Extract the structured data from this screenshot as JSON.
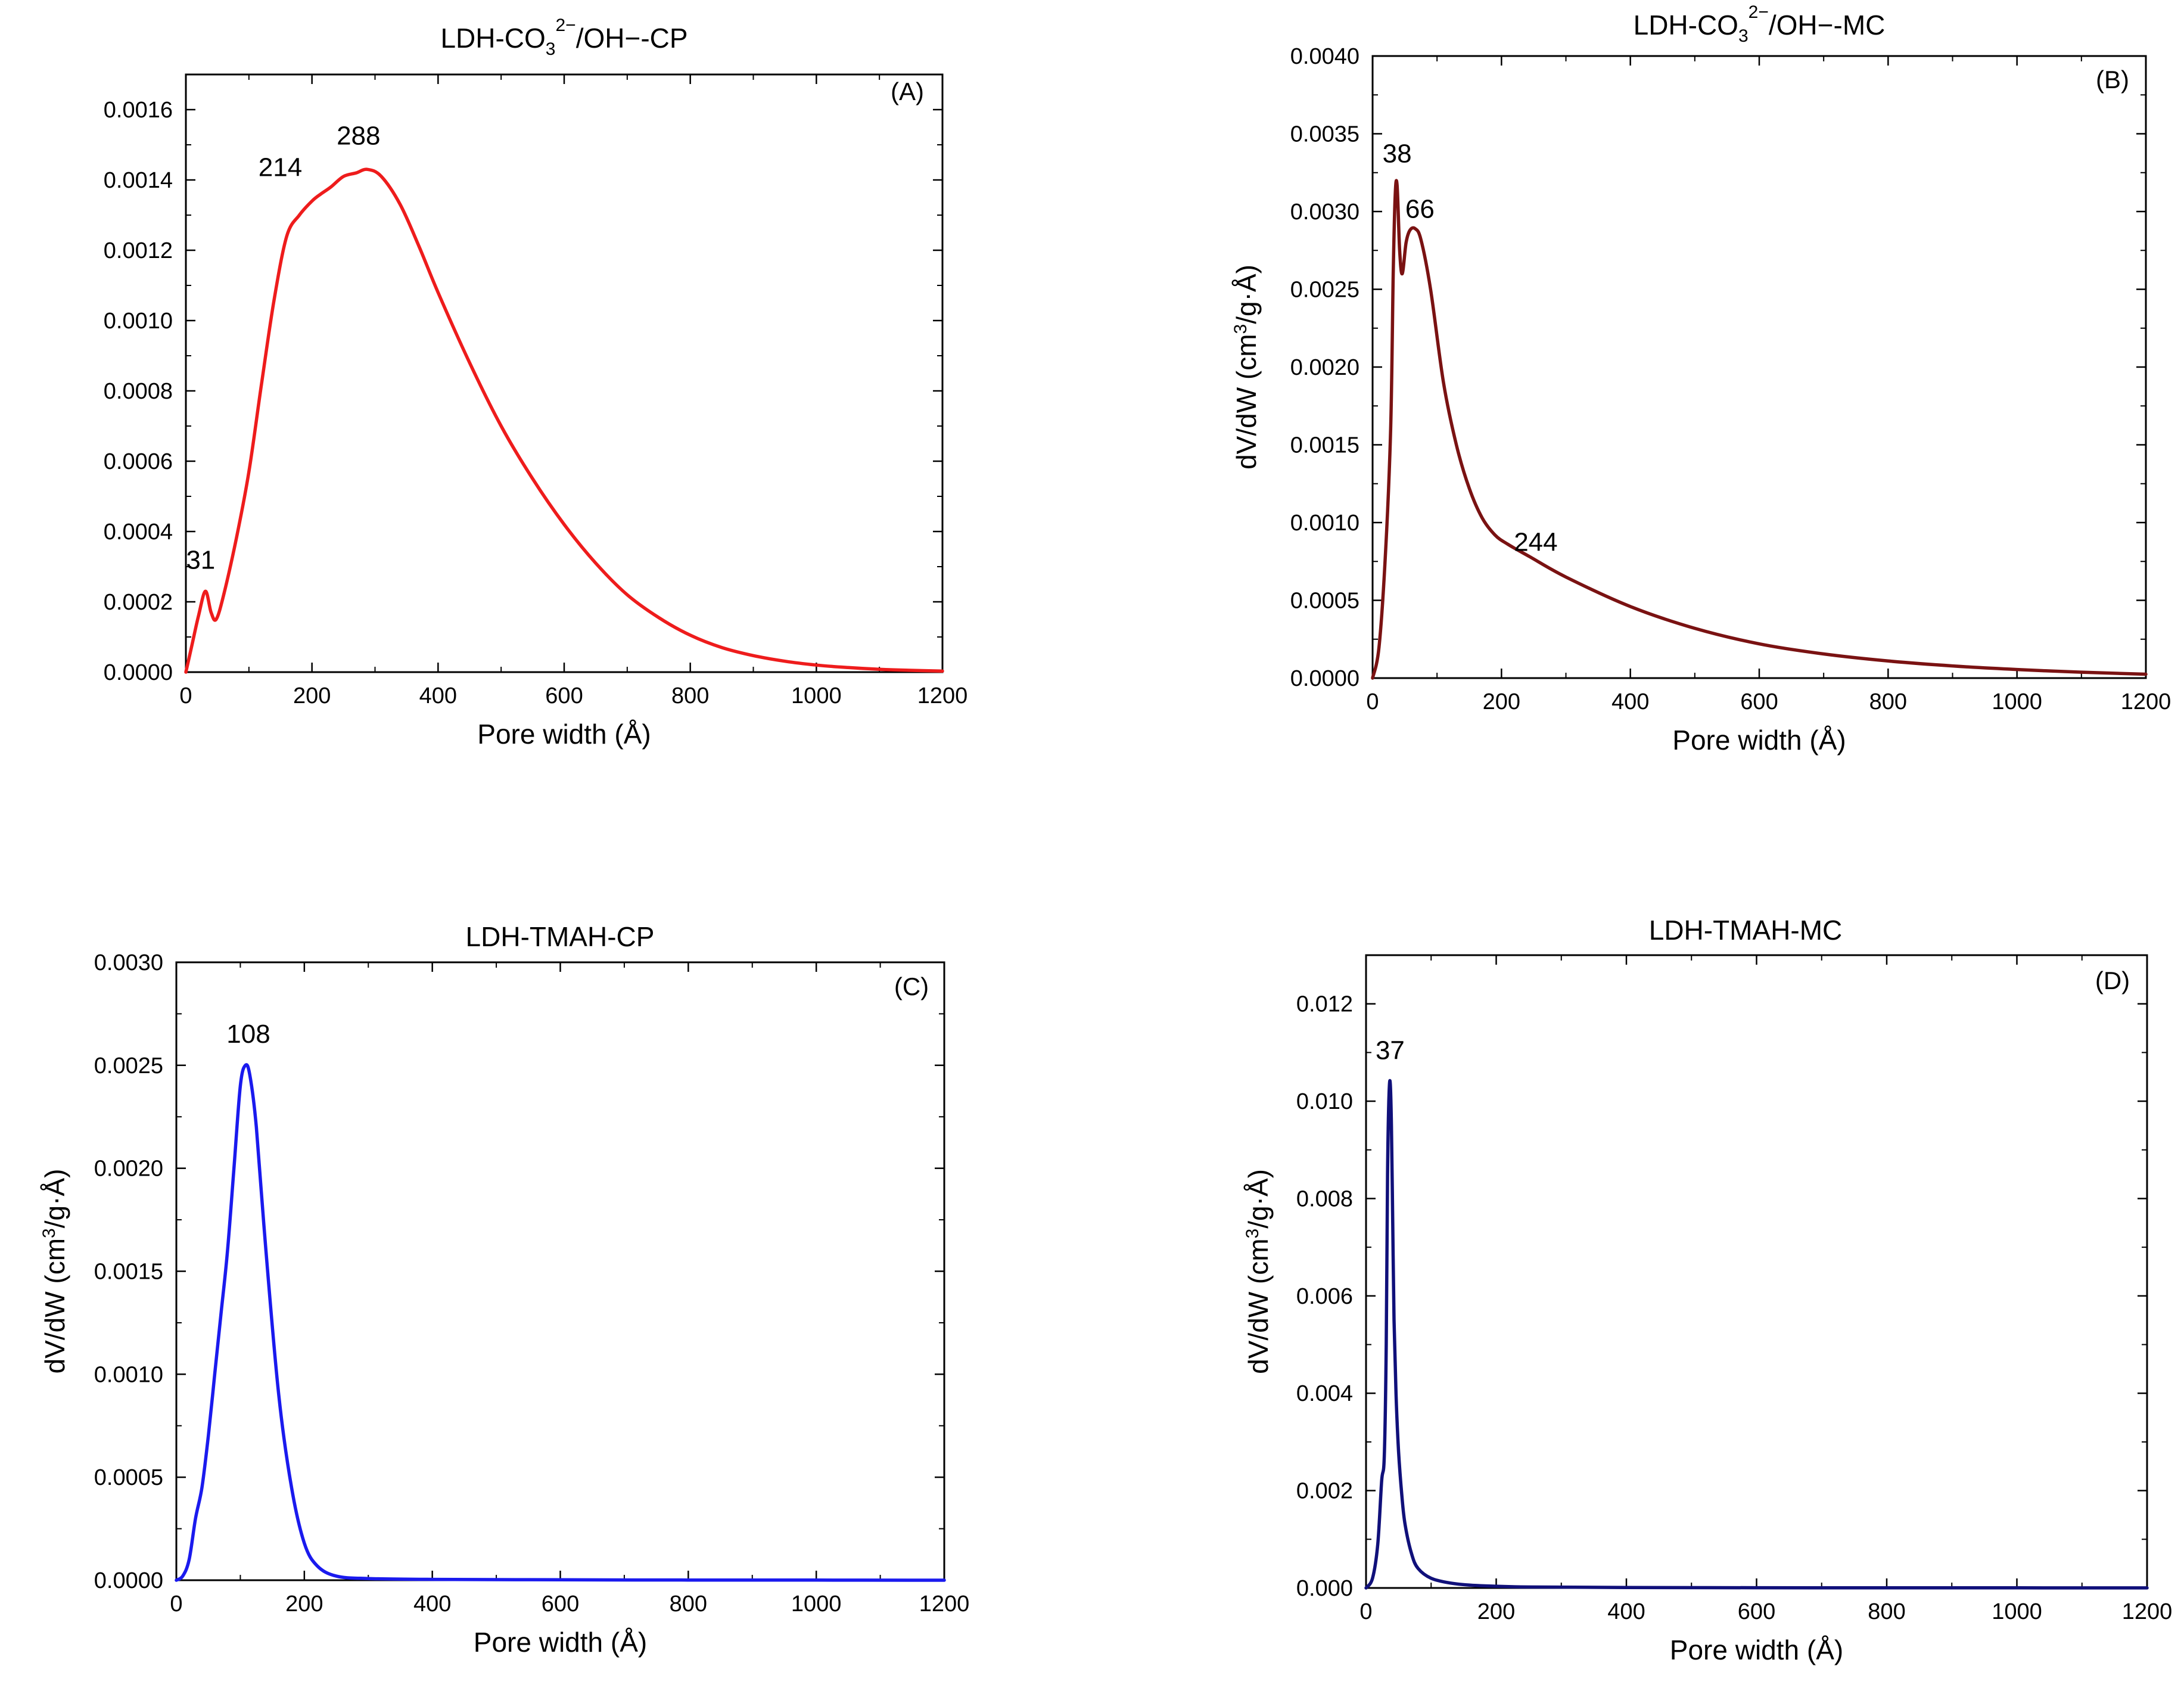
{
  "chart_data": [
    {
      "panel": "A",
      "panel_tag": "(A)",
      "type": "line",
      "title": "LDH-CO32−/OH−-CP",
      "title_parts": {
        "main": "LDH-CO",
        "sub": "3",
        "sup": "2−",
        "rest": "/OH−-CP"
      },
      "xlabel": "Pore width (Å)",
      "ylabel": "",
      "xlim": [
        0,
        1200
      ],
      "ylim": [
        0,
        0.0017
      ],
      "xticks": [
        0,
        200,
        400,
        600,
        800,
        1000,
        1200
      ],
      "yticks": [
        "0.0000",
        "0.0002",
        "0.0004",
        "0.0006",
        "0.0008",
        "0.0010",
        "0.0012",
        "0.0014",
        "0.0016"
      ],
      "color": "#ee1c1c",
      "series": [
        {
          "name": "LDH-CO32−/OH−-CP",
          "x": [
            0,
            10,
            20,
            31,
            40,
            48,
            60,
            80,
            100,
            120,
            140,
            160,
            180,
            200,
            214,
            230,
            250,
            270,
            288,
            310,
            340,
            370,
            400,
            450,
            500,
            550,
            600,
            650,
            700,
            750,
            800,
            850,
            900,
            950,
            1000,
            1050,
            1100,
            1150,
            1200
          ],
          "y": [
            0,
            8e-05,
            0.00016,
            0.00023,
            0.00017,
            0.00015,
            0.00022,
            0.00038,
            0.00057,
            0.00082,
            0.00106,
            0.00124,
            0.0013,
            0.00134,
            0.00136,
            0.00138,
            0.00141,
            0.00142,
            0.00143,
            0.00141,
            0.00133,
            0.00121,
            0.00108,
            0.00088,
            0.0007,
            0.00055,
            0.00042,
            0.00031,
            0.00022,
            0.000155,
            0.000105,
            7e-05,
            4.7e-05,
            3.1e-05,
            2e-05,
            1.3e-05,
            8e-06,
            5e-06,
            3e-06
          ]
        }
      ],
      "annotations": [
        {
          "text": "31",
          "x": 31,
          "y": 0.00023
        },
        {
          "text": "214",
          "x": 214,
          "y": 0.00136
        },
        {
          "text": "288",
          "x": 288,
          "y": 0.00143
        }
      ]
    },
    {
      "panel": "B",
      "panel_tag": "(B)",
      "type": "line",
      "title": "LDH-CO32−/OH−-MC",
      "title_parts": {
        "main": "LDH-CO",
        "sub": "3",
        "sup": "2−",
        "rest": "/OH−-MC"
      },
      "xlabel": "Pore width (Å)",
      "ylabel": "dV/dW (cm3/g·Å)",
      "ylabel_parts": {
        "pre": "dV/dW (cm",
        "sup": "3",
        "post": "/g·Å)"
      },
      "xlim": [
        0,
        1200
      ],
      "ylim": [
        0,
        0.004
      ],
      "xticks": [
        0,
        200,
        400,
        600,
        800,
        1000,
        1200
      ],
      "yticks": [
        "0.0000",
        "0.0005",
        "0.0010",
        "0.0015",
        "0.0020",
        "0.0025",
        "0.0030",
        "0.0035",
        "0.0040"
      ],
      "color": "#7a1212",
      "series": [
        {
          "name": "LDH-CO32−/OH−-MC",
          "x": [
            0,
            10,
            20,
            28,
            32,
            35,
            38,
            42,
            46,
            52,
            58,
            66,
            75,
            90,
            110,
            130,
            150,
            170,
            190,
            210,
            244,
            300,
            400,
            500,
            600,
            700,
            800,
            900,
            1000,
            1100,
            1200
          ],
          "y": [
            0,
            0.0002,
            0.0008,
            0.0016,
            0.0026,
            0.0031,
            0.00317,
            0.00275,
            0.0026,
            0.0028,
            0.00288,
            0.00289,
            0.00282,
            0.0025,
            0.0019,
            0.0015,
            0.00122,
            0.00103,
            0.00092,
            0.00086,
            0.00078,
            0.00065,
            0.00046,
            0.00032,
            0.00022,
            0.000155,
            0.00011,
            7.8e-05,
            5.5e-05,
            3.8e-05,
            2.5e-05
          ]
        }
      ],
      "annotations": [
        {
          "text": "38",
          "x": 38,
          "y": 0.00317
        },
        {
          "text": "66",
          "x": 66,
          "y": 0.00289
        },
        {
          "text": "244",
          "x": 244,
          "y": 0.00078
        }
      ]
    },
    {
      "panel": "C",
      "panel_tag": "(C)",
      "type": "line",
      "title": "LDH-TMAH-CP",
      "xlabel": "Pore width (Å)",
      "ylabel": "dV/dW (cm3/g·Å)",
      "ylabel_parts": {
        "pre": "dV/dW (cm",
        "sup": "3",
        "post": "/g·Å)"
      },
      "xlim": [
        0,
        1200
      ],
      "ylim": [
        0,
        0.003
      ],
      "xticks": [
        0,
        200,
        400,
        600,
        800,
        1000,
        1200
      ],
      "yticks": [
        "0.0000",
        "0.0005",
        "0.0010",
        "0.0015",
        "0.0020",
        "0.0025",
        "0.0030"
      ],
      "color": "#1a1aee",
      "series": [
        {
          "name": "LDH-TMAH-CP",
          "x": [
            0,
            10,
            20,
            30,
            40,
            50,
            60,
            70,
            80,
            90,
            100,
            108,
            115,
            125,
            140,
            160,
            180,
            200,
            220,
            250,
            300,
            400,
            600,
            800,
            1000,
            1200
          ],
          "y": [
            0,
            2e-05,
            0.0001,
            0.0003,
            0.00045,
            0.0007,
            0.001,
            0.0013,
            0.0016,
            0.002,
            0.0024,
            0.0025,
            0.00245,
            0.0022,
            0.0016,
            0.0009,
            0.00045,
            0.00018,
            7e-05,
            2e-05,
            8e-06,
            4e-06,
            2e-06,
            1e-06,
            5e-07,
            0
          ]
        }
      ],
      "annotations": [
        {
          "text": "108",
          "x": 108,
          "y": 0.0025
        }
      ]
    },
    {
      "panel": "D",
      "panel_tag": "(D)",
      "type": "line",
      "title": "LDH-TMAH-MC",
      "xlabel": "Pore width (Å)",
      "ylabel": "dV/dW (cm3/g·Å)",
      "ylabel_parts": {
        "pre": "dV/dW (cm",
        "sup": "3",
        "post": "/g·Å)"
      },
      "xlim": [
        0,
        1200
      ],
      "ylim": [
        0,
        0.013
      ],
      "xticks": [
        0,
        200,
        400,
        600,
        800,
        1000,
        1200
      ],
      "yticks": [
        "0.000",
        "0.002",
        "0.004",
        "0.006",
        "0.008",
        "0.010",
        "0.012"
      ],
      "color": "#10107a",
      "series": [
        {
          "name": "LDH-TMAH-MC",
          "x": [
            0,
            10,
            18,
            24,
            28,
            31,
            33,
            35,
            37,
            39,
            41,
            43,
            46,
            50,
            55,
            60,
            70,
            80,
            100,
            130,
            170,
            250,
            400,
            600,
            800,
            1000,
            1200
          ],
          "y": [
            0,
            0.0002,
            0.0009,
            0.0022,
            0.0027,
            0.005,
            0.0085,
            0.01,
            0.0104,
            0.0095,
            0.0075,
            0.0055,
            0.004,
            0.0028,
            0.0019,
            0.0013,
            0.0007,
            0.0004,
            0.0002,
            0.0001,
            5e-05,
            2e-05,
            1e-05,
            5e-06,
            3e-06,
            2e-06,
            1e-06
          ]
        }
      ],
      "annotations": [
        {
          "text": "37",
          "x": 37,
          "y": 0.0104
        }
      ]
    }
  ]
}
